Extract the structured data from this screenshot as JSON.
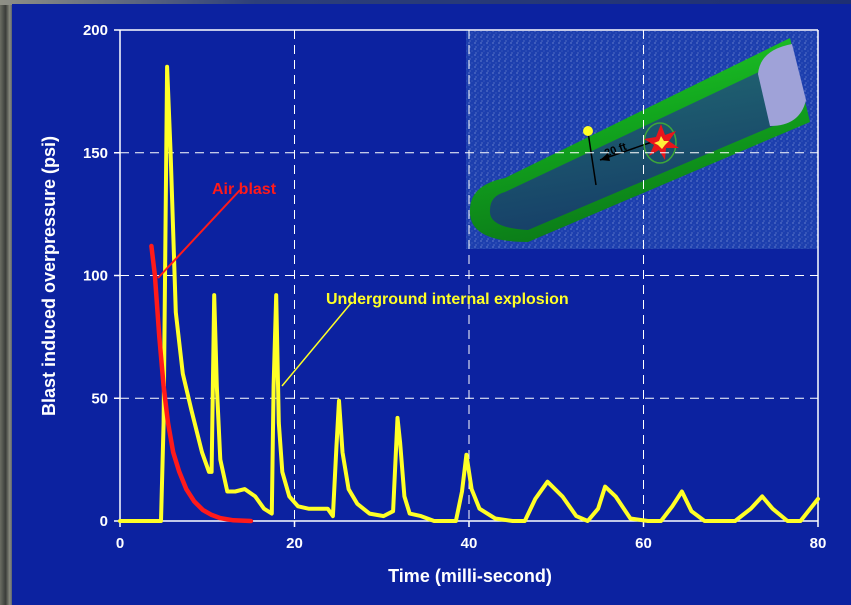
{
  "chart_data": {
    "type": "line",
    "xlabel": "Time (milli-second)",
    "ylabel": "Blast induced overpressure (psi)",
    "xlim": [
      0,
      80
    ],
    "ylim": [
      0,
      200
    ],
    "x_ticks": [
      0,
      20,
      40,
      60,
      80
    ],
    "y_ticks": [
      0,
      50,
      100,
      150,
      200
    ],
    "grid": true,
    "series": [
      {
        "name": "Underground internal explosion",
        "color": "#ffff26",
        "x": [
          0,
          4,
          4.7,
          5,
          5.4,
          5.8,
          6.4,
          7.2,
          8.2,
          9.4,
          10.2,
          10.5,
          10.8,
          11.1,
          11.5,
          12.3,
          13.2,
          14.3,
          15.5,
          16.5,
          17.4,
          17.6,
          17.9,
          18.2,
          18.6,
          19.4,
          20.4,
          21.6,
          22.8,
          23.8,
          24.4,
          24.8,
          25.1,
          25.5,
          26.2,
          27.2,
          28.6,
          30.2,
          31.3,
          31.8,
          32.1,
          32.6,
          33.2,
          34.5,
          36,
          37,
          38.5,
          39.2,
          39.7,
          40.3,
          41.2,
          43,
          45,
          46.4,
          47.6,
          49,
          50.7,
          52.3,
          53.6,
          54.8,
          55.6,
          56.8,
          58.5,
          60.5,
          62,
          63.3,
          64.4,
          65.5,
          67,
          68.5,
          70.5,
          72.3,
          73.6,
          74.8,
          76.5,
          78,
          80
        ],
        "y": [
          0,
          0,
          0,
          40,
          185,
          150,
          85,
          60,
          45,
          28,
          20,
          20,
          92,
          55,
          25,
          12,
          12,
          13,
          10,
          5,
          3,
          55,
          92,
          40,
          20,
          10,
          6,
          5,
          5,
          5,
          2,
          30,
          49,
          28,
          13,
          7,
          3,
          2,
          4,
          42,
          32,
          10,
          3,
          2,
          0,
          0,
          0,
          12,
          27,
          13,
          5,
          1,
          0,
          0,
          9,
          16,
          10,
          2,
          0,
          5,
          14,
          10,
          1,
          0,
          0,
          6,
          12,
          4,
          0,
          0,
          0,
          5,
          10,
          5,
          0,
          0,
          9
        ]
      },
      {
        "name": "Air blast",
        "color": "#ff1a1a",
        "x": [
          3.6,
          4,
          4.5,
          5,
          5.5,
          6.1,
          6.8,
          7.6,
          8.5,
          9.5,
          10.5,
          11.5,
          13,
          15
        ],
        "y": [
          112,
          100,
          75,
          55,
          40,
          28,
          20,
          13,
          8,
          4.5,
          2.5,
          1.2,
          0.3,
          0
        ]
      }
    ],
    "annotations": [
      {
        "text": "Air blast",
        "color": "#ff1a1a"
      },
      {
        "text": "Underground internal explosion",
        "color": "#ffff26"
      }
    ],
    "inset": {
      "label": "20 ft"
    }
  }
}
